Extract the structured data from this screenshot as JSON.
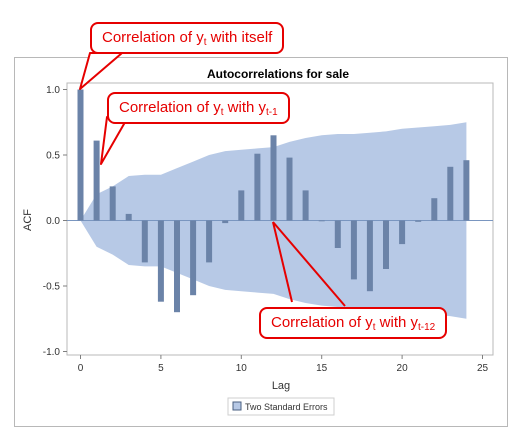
{
  "chart_data": {
    "type": "bar",
    "title": "Autocorrelations for sale",
    "xlabel": "Lag",
    "ylabel": "ACF",
    "xlim": [
      -0.8,
      25.5
    ],
    "ylim": [
      -1.0,
      1.0
    ],
    "x_ticks": [
      "0",
      "5",
      "10",
      "15",
      "20",
      "25"
    ],
    "y_ticks": [
      "-1.0",
      "-0.5",
      "0.0",
      "0.5",
      "1.0"
    ],
    "lags": [
      0,
      1,
      2,
      3,
      4,
      5,
      6,
      7,
      8,
      9,
      10,
      11,
      12,
      13,
      14,
      15,
      16,
      17,
      18,
      19,
      20,
      21,
      22,
      23,
      24
    ],
    "acf": [
      1.0,
      0.61,
      0.26,
      0.05,
      -0.32,
      -0.62,
      -0.7,
      -0.57,
      -0.32,
      -0.02,
      0.23,
      0.51,
      0.65,
      0.48,
      0.23,
      0.0,
      -0.21,
      -0.45,
      -0.54,
      -0.37,
      -0.18,
      -0.01,
      0.17,
      0.41,
      0.46
    ],
    "two_std_errors": [
      0.0,
      0.2,
      0.26,
      0.34,
      0.35,
      0.35,
      0.4,
      0.45,
      0.5,
      0.53,
      0.54,
      0.55,
      0.56,
      0.6,
      0.63,
      0.65,
      0.66,
      0.66,
      0.67,
      0.68,
      0.7,
      0.71,
      0.72,
      0.73,
      0.75
    ],
    "legend": {
      "label": "Two Standard Errors",
      "placement": "bottom-center"
    },
    "colors": {
      "bar": "#6b83a8",
      "band": "#b7c9e6",
      "zero_line": "#7a96c0",
      "axis": "#7f7f7f",
      "frame": "#b8b8b8"
    }
  },
  "annotations": [
    {
      "prefix": "Correlation of y",
      "sub1": "t",
      "mid": " with itself",
      "sub2": ""
    },
    {
      "prefix": "Correlation of y",
      "sub1": "t",
      "mid": " with y",
      "sub2": "t-1"
    },
    {
      "prefix": "Correlation of y",
      "sub1": "t",
      "mid": " with y",
      "sub2": "t-12"
    }
  ],
  "annotation_color": "#e60000"
}
